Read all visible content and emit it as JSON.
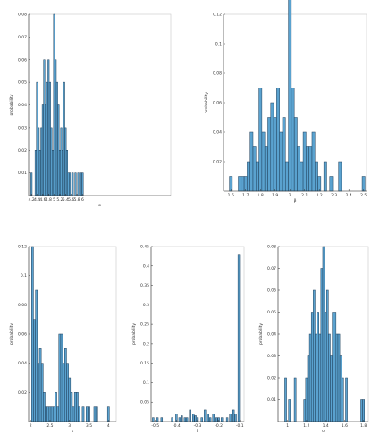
{
  "chart_data": [
    {
      "type": "bar",
      "xlabel": "α",
      "ylabel": "probability",
      "xlim": [
        4.1,
        9.1
      ],
      "ylim": [
        0,
        0.08
      ],
      "xticks": [
        4.2,
        4.4,
        4.6,
        4.8,
        5.0,
        5.2,
        5.4,
        5.6,
        5.8,
        6.0
      ],
      "xtick_labels": [
        "4.2",
        "4.4",
        "4.6",
        "4.8",
        "5",
        "5.2",
        "5.4",
        "5.6",
        "5.8",
        "6"
      ],
      "yticks": [
        0.01,
        0.02,
        0.03,
        0.04,
        0.05,
        0.06,
        0.07,
        0.08
      ],
      "ytick_labels": [
        "0.01",
        "0.02",
        "0.03",
        "0.04",
        "0.05",
        "0.06",
        "0.07",
        "0.08"
      ],
      "bin_width": 0.05,
      "x": [
        4.2,
        4.35,
        4.4,
        4.45,
        4.5,
        4.55,
        4.6,
        4.65,
        4.7,
        4.75,
        4.8,
        4.85,
        4.9,
        4.95,
        5.0,
        5.05,
        5.1,
        5.15,
        5.2,
        5.25,
        5.3,
        5.35,
        5.4,
        5.45,
        5.5,
        5.55,
        5.65,
        5.75,
        5.85,
        5.95,
        6.0
      ],
      "values": [
        0.01,
        0.02,
        0.05,
        0.03,
        0.02,
        0.03,
        0.04,
        0.06,
        0.04,
        0.05,
        0.06,
        0.05,
        0.03,
        0.02,
        0.08,
        0.06,
        0.05,
        0.04,
        0.02,
        0.03,
        0.02,
        0.05,
        0.03,
        0.02,
        0.01,
        0.01,
        0.01,
        0.01,
        0.01,
        0.01,
        0.01
      ]
    },
    {
      "type": "bar",
      "xlabel": "β",
      "ylabel": "probability",
      "xlim": [
        1.55,
        2.52
      ],
      "ylim": [
        0,
        0.12
      ],
      "xticks": [
        1.6,
        1.7,
        1.8,
        1.9,
        2.0,
        2.1,
        2.2,
        2.3,
        2.4,
        2.5
      ],
      "xtick_labels": [
        "1.6",
        "1.7",
        "1.8",
        "1.9",
        "2",
        "2.1",
        "2.2",
        "2.3",
        "2.4",
        "2.5"
      ],
      "yticks": [
        0.02,
        0.04,
        0.06,
        0.08,
        0.1,
        0.12
      ],
      "ytick_labels": [
        "0.02",
        "0.04",
        "0.06",
        "0.08",
        "0.1",
        "0.12"
      ],
      "bin_width": 0.02,
      "x": [
        1.6,
        1.66,
        1.68,
        1.7,
        1.72,
        1.74,
        1.76,
        1.78,
        1.8,
        1.82,
        1.84,
        1.86,
        1.88,
        1.9,
        1.92,
        1.94,
        1.96,
        1.98,
        2.0,
        2.02,
        2.04,
        2.06,
        2.08,
        2.1,
        2.12,
        2.14,
        2.16,
        2.18,
        2.2,
        2.24,
        2.28,
        2.34,
        2.5
      ],
      "values": [
        0.01,
        0.01,
        0.01,
        0.01,
        0.02,
        0.04,
        0.03,
        0.02,
        0.07,
        0.04,
        0.03,
        0.05,
        0.06,
        0.05,
        0.07,
        0.04,
        0.05,
        0.02,
        0.13,
        0.07,
        0.05,
        0.03,
        0.02,
        0.04,
        0.03,
        0.03,
        0.04,
        0.02,
        0.01,
        0.02,
        0.01,
        0.02,
        0.01
      ]
    },
    {
      "type": "bar",
      "xlabel": "κ",
      "ylabel": "probability",
      "xlim": [
        1.95,
        4.2
      ],
      "ylim": [
        0,
        0.12
      ],
      "xticks": [
        2.0,
        2.5,
        3.0,
        3.5,
        4.0
      ],
      "xtick_labels": [
        "2",
        "2.5",
        "3",
        "3.5",
        "4"
      ],
      "yticks": [
        0.02,
        0.04,
        0.06,
        0.08,
        0.1,
        0.12
      ],
      "ytick_labels": [
        "0.02",
        "0.04",
        "0.06",
        "0.08",
        "0.1",
        "0.12"
      ],
      "bin_width": 0.05,
      "x": [
        2.05,
        2.1,
        2.15,
        2.2,
        2.25,
        2.3,
        2.35,
        2.4,
        2.45,
        2.5,
        2.55,
        2.6,
        2.65,
        2.7,
        2.75,
        2.8,
        2.85,
        2.9,
        2.95,
        3.0,
        3.05,
        3.1,
        3.15,
        3.2,
        3.25,
        3.35,
        3.45,
        3.5,
        3.65,
        3.7,
        4.0
      ],
      "values": [
        0.12,
        0.07,
        0.09,
        0.04,
        0.05,
        0.04,
        0.02,
        0.01,
        0.01,
        0.01,
        0.01,
        0.01,
        0.02,
        0.01,
        0.06,
        0.06,
        0.04,
        0.05,
        0.04,
        0.03,
        0.02,
        0.01,
        0.02,
        0.02,
        0.01,
        0.01,
        0.01,
        0.01,
        0.01,
        0.01,
        0.01
      ]
    },
    {
      "type": "bar",
      "xlabel": "ζ",
      "ylabel": "probability",
      "xlim": [
        -0.52,
        -0.08
      ],
      "ylim": [
        0,
        0.45
      ],
      "xticks": [
        -0.5,
        -0.4,
        -0.3,
        -0.2,
        -0.1
      ],
      "xtick_labels": [
        "-0.5",
        "-0.4",
        "-0.3",
        "-0.2",
        "-0.1"
      ],
      "yticks": [
        0.05,
        0.1,
        0.15,
        0.2,
        0.25,
        0.3,
        0.35,
        0.4,
        0.45
      ],
      "ytick_labels": [
        "0.05",
        "0.1",
        "0.15",
        "0.2",
        "0.25",
        "0.3",
        "0.35",
        "0.4",
        "0.45"
      ],
      "bin_width": 0.008,
      "x": [
        -0.51,
        -0.49,
        -0.47,
        -0.42,
        -0.4,
        -0.385,
        -0.375,
        -0.36,
        -0.35,
        -0.335,
        -0.32,
        -0.31,
        -0.3,
        -0.28,
        -0.265,
        -0.25,
        -0.24,
        -0.225,
        -0.21,
        -0.2,
        -0.185,
        -0.16,
        -0.145,
        -0.13,
        -0.12,
        -0.105
      ],
      "values": [
        0.01,
        0.01,
        0.01,
        0.01,
        0.02,
        0.01,
        0.015,
        0.01,
        0.01,
        0.03,
        0.02,
        0.015,
        0.01,
        0.01,
        0.03,
        0.02,
        0.01,
        0.02,
        0.01,
        0.01,
        0.01,
        0.01,
        0.02,
        0.03,
        0.02,
        0.43
      ]
    },
    {
      "type": "bar",
      "xlabel": "σ",
      "ylabel": "probability",
      "xlim": [
        0.9,
        1.85
      ],
      "ylim": [
        0,
        0.08
      ],
      "xticks": [
        1.0,
        1.2,
        1.4,
        1.6,
        1.8
      ],
      "xtick_labels": [
        "1",
        "1.2",
        "1.4",
        "1.6",
        "1.8"
      ],
      "yticks": [
        0.01,
        0.02,
        0.03,
        0.04,
        0.05,
        0.06,
        0.07,
        0.08
      ],
      "ytick_labels": [
        "0.01",
        "0.02",
        "0.03",
        "0.04",
        "0.05",
        "0.06",
        "0.07",
        "0.08"
      ],
      "bin_width": 0.02,
      "x": [
        0.98,
        1.02,
        1.08,
        1.18,
        1.2,
        1.22,
        1.24,
        1.26,
        1.28,
        1.3,
        1.32,
        1.34,
        1.36,
        1.38,
        1.4,
        1.42,
        1.44,
        1.46,
        1.48,
        1.5,
        1.52,
        1.54,
        1.56,
        1.58,
        1.62,
        1.78,
        1.8
      ],
      "values": [
        0.02,
        0.01,
        0.02,
        0.01,
        0.02,
        0.03,
        0.04,
        0.05,
        0.06,
        0.04,
        0.05,
        0.04,
        0.07,
        0.08,
        0.05,
        0.06,
        0.04,
        0.03,
        0.05,
        0.05,
        0.04,
        0.04,
        0.03,
        0.02,
        0.02,
        0.01,
        0.01
      ]
    }
  ]
}
